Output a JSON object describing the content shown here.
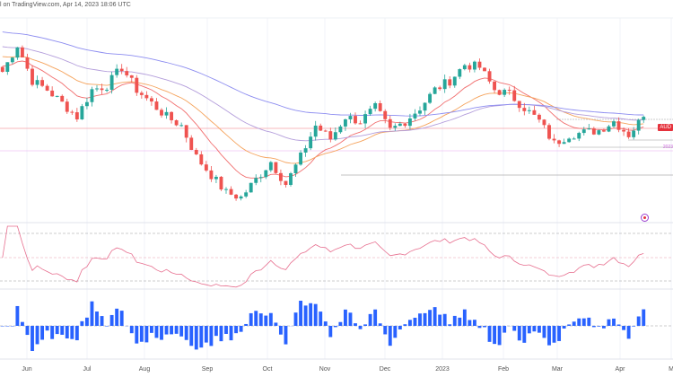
{
  "header": {
    "credit": "l on TradingView.com, Apr 14, 2023 18:06 UTC"
  },
  "price_badge": "AUD",
  "date_badge": "2023",
  "colors": {
    "up": "#26a69a",
    "down": "#ef5350",
    "rsi": "#e76f8f",
    "hist": "#2962ff",
    "ma_fast": "#f16f6f",
    "ma_mid": "#f5a35c",
    "ma_slow": "#b39ddb",
    "ma_long": "#8c8cf0"
  },
  "chart_data": {
    "type": "candlestick",
    "title": "",
    "x_ticks": [
      "Jun",
      "Jul",
      "Aug",
      "Sep",
      "Oct",
      "Nov",
      "Dec",
      "2023",
      "Feb",
      "Mar",
      "Apr",
      "M"
    ],
    "closes": [
      0.6953,
      0.7063,
      0.6916,
      0.6879,
      0.6824,
      0.6768,
      0.6879,
      0.6897,
      0.6971,
      0.6879,
      0.6824,
      0.6768,
      0.6732,
      0.6603,
      0.6529,
      0.6456,
      0.6437,
      0.6511,
      0.6584,
      0.6492,
      0.6603,
      0.6732,
      0.6677,
      0.6768,
      0.675,
      0.6805,
      0.6713,
      0.675,
      0.6805,
      0.6879,
      0.6916,
      0.6982,
      0.6971,
      0.6879,
      0.6861,
      0.6805,
      0.675,
      0.6658,
      0.6695,
      0.6703,
      0.6713,
      0.675,
      0.6695,
      0.6768
    ],
    "ylim": [
      0.64,
      0.71
    ],
    "panes": [
      "price with moving averages",
      "RSI",
      "momentum histogram"
    ]
  }
}
